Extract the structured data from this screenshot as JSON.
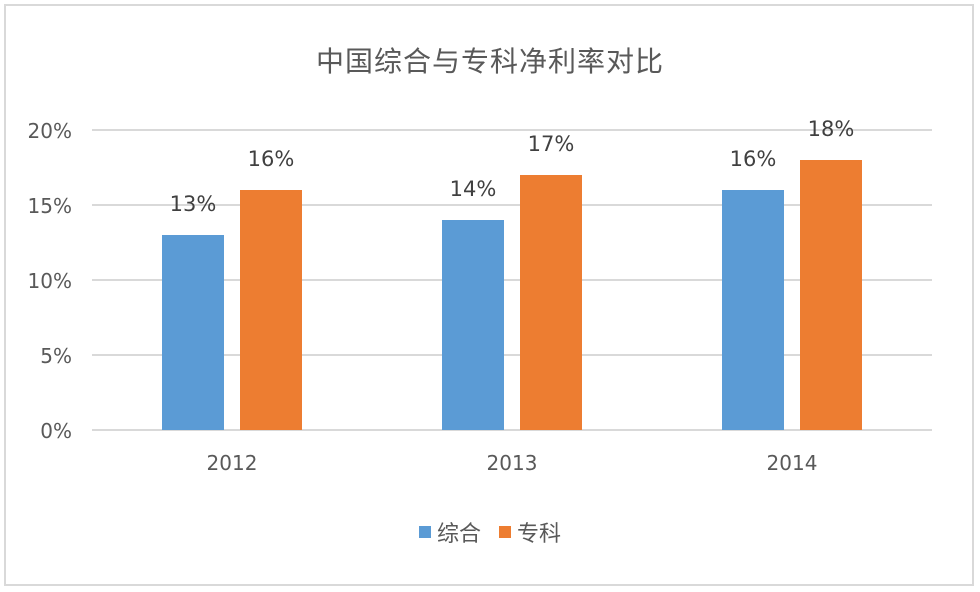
{
  "chart_data": {
    "type": "bar",
    "title": "中国综合与专科净利率对比",
    "categories": [
      "2012",
      "2013",
      "2014"
    ],
    "series": [
      {
        "name": "综合",
        "values": [
          13,
          14,
          16
        ],
        "labels": [
          "13%",
          "14%",
          "16%"
        ],
        "color": "#5b9bd5"
      },
      {
        "name": "专科",
        "values": [
          16,
          17,
          18
        ],
        "labels": [
          "16%",
          "17%",
          "18%"
        ],
        "color": "#ed7d31"
      }
    ],
    "y_ticks": [
      "0%",
      "5%",
      "10%",
      "15%",
      "20%"
    ],
    "ylim": [
      0,
      20
    ],
    "grid": true,
    "legend_position": "bottom"
  }
}
